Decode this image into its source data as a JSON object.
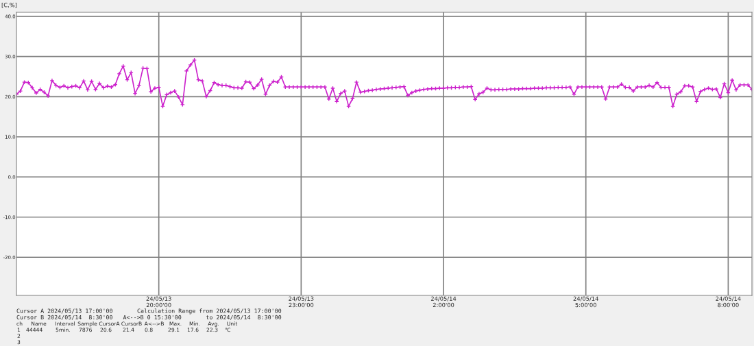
{
  "chart_data": {
    "type": "line",
    "ylabel": "[C,%]",
    "x": [
      "2024-05-13T17:00",
      "2024-05-13T17:05",
      "2024-05-13T17:10",
      "2024-05-13T17:15",
      "2024-05-13T17:20",
      "2024-05-13T17:25",
      "2024-05-13T17:30",
      "2024-05-13T17:35",
      "2024-05-13T17:40",
      "2024-05-13T17:45",
      "2024-05-13T17:50",
      "2024-05-13T17:55",
      "2024-05-13T18:00",
      "2024-05-13T18:05",
      "2024-05-13T18:10",
      "2024-05-13T18:15",
      "2024-05-13T18:20",
      "2024-05-13T18:25",
      "2024-05-13T18:30",
      "2024-05-13T18:35",
      "2024-05-13T18:40",
      "2024-05-13T18:45",
      "2024-05-13T18:50",
      "2024-05-13T18:55",
      "2024-05-13T19:00",
      "2024-05-13T19:05",
      "2024-05-13T19:10",
      "2024-05-13T19:15",
      "2024-05-13T19:20",
      "2024-05-13T19:25",
      "2024-05-13T19:30",
      "2024-05-13T19:35",
      "2024-05-13T19:40",
      "2024-05-13T19:45",
      "2024-05-13T19:50",
      "2024-05-13T19:55",
      "2024-05-13T20:00",
      "2024-05-13T20:05",
      "2024-05-13T20:10",
      "2024-05-13T20:15",
      "2024-05-13T20:20",
      "2024-05-13T20:25",
      "2024-05-13T20:30",
      "2024-05-13T20:35",
      "2024-05-13T20:40",
      "2024-05-13T20:45",
      "2024-05-13T20:50",
      "2024-05-13T20:55",
      "2024-05-13T21:00",
      "2024-05-13T21:05",
      "2024-05-13T21:10",
      "2024-05-13T21:15",
      "2024-05-13T21:20",
      "2024-05-13T21:25",
      "2024-05-13T21:30",
      "2024-05-13T21:35",
      "2024-05-13T21:40",
      "2024-05-13T21:45",
      "2024-05-13T21:50",
      "2024-05-13T21:55",
      "2024-05-13T22:00",
      "2024-05-13T22:05",
      "2024-05-13T22:10",
      "2024-05-13T22:15",
      "2024-05-13T22:20",
      "2024-05-13T22:25",
      "2024-05-13T22:30",
      "2024-05-13T22:35",
      "2024-05-13T22:40",
      "2024-05-13T22:45",
      "2024-05-13T22:50",
      "2024-05-13T22:55",
      "2024-05-13T23:00",
      "2024-05-13T23:05",
      "2024-05-13T23:10",
      "2024-05-13T23:15",
      "2024-05-13T23:20",
      "2024-05-13T23:25",
      "2024-05-13T23:30",
      "2024-05-13T23:35",
      "2024-05-13T23:40",
      "2024-05-13T23:45",
      "2024-05-13T23:50",
      "2024-05-13T23:55",
      "2024-05-14T00:00",
      "2024-05-14T00:05",
      "2024-05-14T00:10",
      "2024-05-14T00:15",
      "2024-05-14T00:20",
      "2024-05-14T00:25",
      "2024-05-14T00:30",
      "2024-05-14T00:35",
      "2024-05-14T00:40",
      "2024-05-14T00:45",
      "2024-05-14T00:50",
      "2024-05-14T00:55",
      "2024-05-14T01:00",
      "2024-05-14T01:05",
      "2024-05-14T01:10",
      "2024-05-14T01:15",
      "2024-05-14T01:20",
      "2024-05-14T01:25",
      "2024-05-14T01:30",
      "2024-05-14T01:35",
      "2024-05-14T01:40",
      "2024-05-14T01:45",
      "2024-05-14T01:50",
      "2024-05-14T01:55",
      "2024-05-14T02:00",
      "2024-05-14T02:05",
      "2024-05-14T02:10",
      "2024-05-14T02:15",
      "2024-05-14T02:20",
      "2024-05-14T02:25",
      "2024-05-14T02:30",
      "2024-05-14T02:35",
      "2024-05-14T02:40",
      "2024-05-14T02:45",
      "2024-05-14T02:50",
      "2024-05-14T02:55",
      "2024-05-14T03:00",
      "2024-05-14T03:05",
      "2024-05-14T03:10",
      "2024-05-14T03:15",
      "2024-05-14T03:20",
      "2024-05-14T03:25",
      "2024-05-14T03:30",
      "2024-05-14T03:35",
      "2024-05-14T03:40",
      "2024-05-14T03:45",
      "2024-05-14T03:50",
      "2024-05-14T03:55",
      "2024-05-14T04:00",
      "2024-05-14T04:05",
      "2024-05-14T04:10",
      "2024-05-14T04:15",
      "2024-05-14T04:20",
      "2024-05-14T04:25",
      "2024-05-14T04:30",
      "2024-05-14T04:35",
      "2024-05-14T04:40",
      "2024-05-14T04:45",
      "2024-05-14T04:50",
      "2024-05-14T04:55",
      "2024-05-14T05:00",
      "2024-05-14T05:05",
      "2024-05-14T05:10",
      "2024-05-14T05:15",
      "2024-05-14T05:20",
      "2024-05-14T05:25",
      "2024-05-14T05:30",
      "2024-05-14T05:35",
      "2024-05-14T05:40",
      "2024-05-14T05:45",
      "2024-05-14T05:50",
      "2024-05-14T05:55",
      "2024-05-14T06:00",
      "2024-05-14T06:05",
      "2024-05-14T06:10",
      "2024-05-14T06:15",
      "2024-05-14T06:20",
      "2024-05-14T06:25",
      "2024-05-14T06:30",
      "2024-05-14T06:35",
      "2024-05-14T06:40",
      "2024-05-14T06:45",
      "2024-05-14T06:50",
      "2024-05-14T06:55",
      "2024-05-14T07:00",
      "2024-05-14T07:05",
      "2024-05-14T07:10",
      "2024-05-14T07:15",
      "2024-05-14T07:20",
      "2024-05-14T07:25",
      "2024-05-14T07:30",
      "2024-05-14T07:35",
      "2024-05-14T07:40",
      "2024-05-14T07:45",
      "2024-05-14T07:50",
      "2024-05-14T07:55",
      "2024-05-14T08:00",
      "2024-05-14T08:05",
      "2024-05-14T08:10",
      "2024-05-14T08:15",
      "2024-05-14T08:20",
      "2024-05-14T08:25",
      "2024-05-14T08:30"
    ],
    "series": [
      {
        "color": "#cc22cc",
        "values": [
          20.6,
          21.4,
          23.6,
          23.5,
          22.2,
          20.9,
          21.8,
          21.1,
          20.2,
          24.0,
          22.8,
          22.3,
          22.7,
          22.2,
          22.5,
          22.7,
          22.2,
          23.9,
          21.7,
          23.8,
          21.8,
          23.3,
          22.2,
          22.6,
          22.4,
          23.0,
          25.7,
          27.6,
          24.2,
          26.0,
          20.8,
          22.8,
          27.1,
          27.0,
          21.2,
          22.1,
          22.3,
          17.6,
          20.5,
          21.0,
          21.4,
          19.9,
          18.0,
          26.4,
          27.9,
          29.1,
          24.2,
          23.9,
          20.0,
          21.5,
          23.5,
          23.0,
          22.8,
          22.8,
          22.5,
          22.2,
          22.2,
          22.1,
          23.7,
          23.6,
          22.0,
          22.9,
          24.3,
          20.6,
          22.8,
          23.8,
          23.6,
          24.9,
          22.4,
          22.4,
          22.4,
          22.4,
          22.4,
          22.4,
          22.4,
          22.4,
          22.4,
          22.4,
          22.4,
          19.4,
          22.1,
          18.8,
          20.8,
          21.4,
          17.6,
          19.5,
          23.6,
          21.1,
          21.3,
          21.5,
          21.6,
          21.8,
          21.9,
          22.0,
          22.1,
          22.2,
          22.3,
          22.4,
          22.5,
          20.3,
          21.0,
          21.4,
          21.6,
          21.8,
          21.9,
          22.0,
          22.0,
          22.1,
          22.1,
          22.2,
          22.2,
          22.3,
          22.3,
          22.4,
          22.4,
          22.5,
          19.3,
          20.7,
          21.1,
          22.1,
          21.7,
          21.7,
          21.8,
          21.8,
          21.8,
          21.9,
          21.9,
          21.9,
          22.0,
          22.0,
          22.0,
          22.1,
          22.1,
          22.1,
          22.2,
          22.2,
          22.2,
          22.3,
          22.3,
          22.3,
          22.4,
          20.6,
          22.4,
          22.4,
          22.4,
          22.4,
          22.4,
          22.4,
          22.4,
          19.4,
          22.4,
          22.4,
          22.4,
          23.1,
          22.3,
          22.3,
          21.4,
          22.4,
          22.4,
          22.4,
          22.8,
          22.4,
          23.5,
          22.3,
          22.3,
          22.3,
          17.6,
          20.6,
          21.2,
          22.7,
          22.7,
          22.4,
          18.8,
          21.3,
          21.8,
          22.1,
          21.8,
          21.9,
          19.8,
          23.2,
          21.0,
          24.1,
          21.7,
          22.9,
          22.9,
          22.9,
          21.8
        ]
      }
    ],
    "marker": "cross",
    "line_style": "solid",
    "grid": true,
    "xlim": [
      "2024-05-13T17:00",
      "2024-05-14T08:30"
    ],
    "xticks": [
      {
        "value": "2024-05-13T20:00",
        "label": "24/05/13\n20:00'00"
      },
      {
        "value": "2024-05-13T23:00",
        "label": "24/05/13\n23:00'00"
      },
      {
        "value": "2024-05-14T02:00",
        "label": "24/05/14\n2:00'00"
      },
      {
        "value": "2024-05-14T05:00",
        "label": "24/05/14\n5:00'00"
      },
      {
        "value": "2024-05-14T08:00",
        "label": "24/05/14\n8:00'00"
      }
    ],
    "ylim": [
      -29.5,
      41
    ],
    "yticks": [
      {
        "value": 40,
        "label": "40.0"
      },
      {
        "value": 30,
        "label": "30.0"
      },
      {
        "value": 20,
        "label": "20.0"
      },
      {
        "value": 10,
        "label": "10.0"
      },
      {
        "value": 0,
        "label": "0.0"
      },
      {
        "value": -10,
        "label": "-10.0"
      },
      {
        "value": -20,
        "label": "-20.0"
      }
    ],
    "annotations": [
      "Cursor A 2024/05/13 17:00'00\nCursor B 2024/05/14  8:30'00   A<-->B 0 15:30'00",
      "Calculation Range from 2024/05/13 17:00'00\n                    to 2024/05/14  8:30'00",
      "ch",
      "Name",
      "Interval",
      "Sample",
      "CursorA",
      "CursorB",
      "A<-->B",
      "Max.",
      "Min.",
      "Avg.",
      "Unit",
      "1",
      "44444",
      "5min.",
      "7876",
      "20.6",
      "21.4",
      "0.8",
      "29.1",
      "17.6",
      "22.3",
      "℃",
      "2",
      "3"
    ]
  }
}
